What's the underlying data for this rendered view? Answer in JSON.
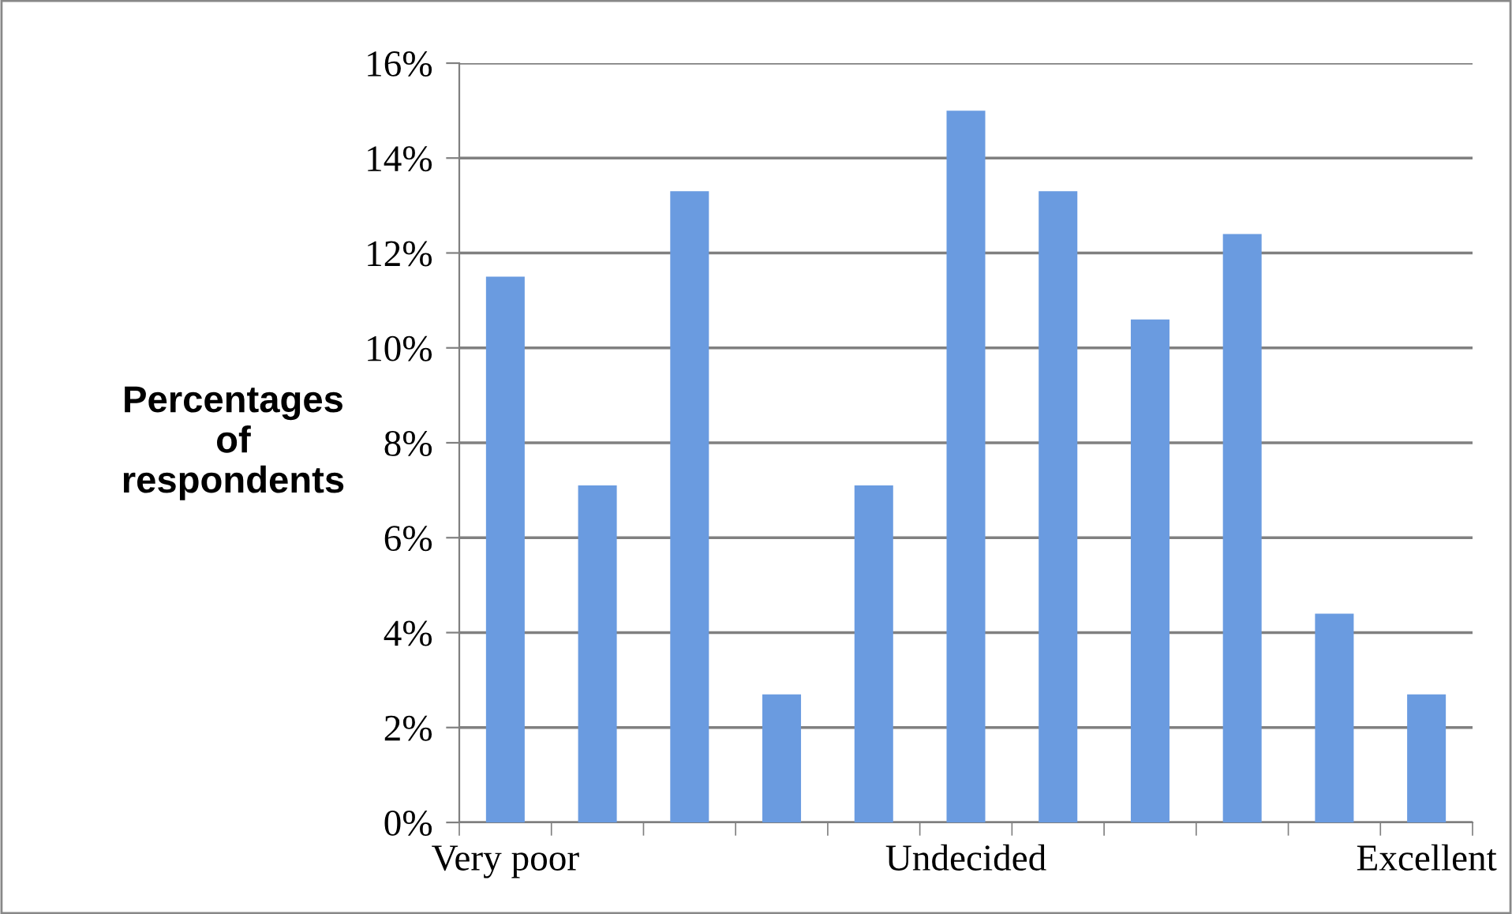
{
  "chart_data": {
    "type": "bar",
    "ylabel": "Percentages\nof\nrespondents",
    "categories": [
      "Very poor",
      null,
      null,
      null,
      null,
      "Undecided",
      null,
      null,
      null,
      null,
      "Excellent"
    ],
    "values": [
      11.5,
      7.1,
      13.3,
      2.7,
      7.1,
      15.0,
      13.3,
      10.6,
      12.4,
      4.4,
      2.7
    ],
    "color": "#6a9be0",
    "ylim": [
      0,
      16
    ],
    "yticks": [
      {
        "value": 0,
        "label": "0%"
      },
      {
        "value": 2,
        "label": "2%"
      },
      {
        "value": 4,
        "label": "4%"
      },
      {
        "value": 6,
        "label": "6%"
      },
      {
        "value": 8,
        "label": "8%"
      },
      {
        "value": 10,
        "label": "10%"
      },
      {
        "value": 12,
        "label": "12%"
      },
      {
        "value": 14,
        "label": "14%"
      },
      {
        "value": 16,
        "label": "16%"
      }
    ],
    "grid": "y",
    "legend": false
  }
}
